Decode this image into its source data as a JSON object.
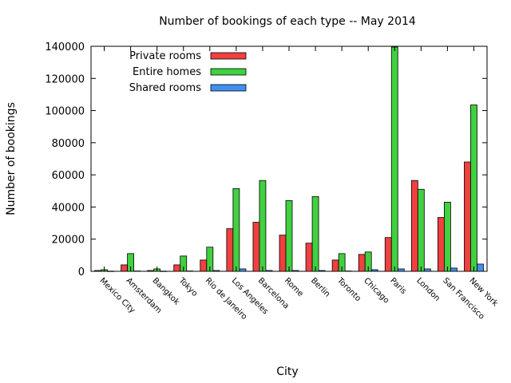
{
  "chart_data": {
    "type": "bar",
    "title": "Number of bookings of each type -- May 2014",
    "xlabel": "City",
    "ylabel": "Number of bookings",
    "ylim": [
      0,
      140000
    ],
    "yticks": [
      0,
      20000,
      40000,
      60000,
      80000,
      100000,
      120000,
      140000
    ],
    "grid": false,
    "legend_position": "top-left",
    "categories": [
      "Mexico City",
      "Amsterdam",
      "Bangkok",
      "Tokyo",
      "Rio de Janeiro",
      "Los Angeles",
      "Barcelona",
      "Rome",
      "Berlin",
      "Toronto",
      "Chicago",
      "Paris",
      "London",
      "San Francisco",
      "New York"
    ],
    "series": [
      {
        "name": "Private rooms",
        "color": "#f04040",
        "values": [
          500,
          4000,
          500,
          4000,
          7000,
          26500,
          30500,
          22500,
          17500,
          7000,
          10500,
          21000,
          56500,
          33500,
          68000
        ]
      },
      {
        "name": "Entire homes",
        "color": "#40d040",
        "values": [
          1000,
          11000,
          1500,
          9500,
          15000,
          51500,
          56500,
          44000,
          46500,
          11000,
          12000,
          139500,
          51000,
          43000,
          103500
        ]
      },
      {
        "name": "Shared rooms",
        "color": "#4090f0",
        "values": [
          100,
          200,
          100,
          200,
          500,
          1500,
          500,
          500,
          500,
          200,
          1000,
          1500,
          1500,
          2000,
          4500
        ]
      }
    ]
  }
}
